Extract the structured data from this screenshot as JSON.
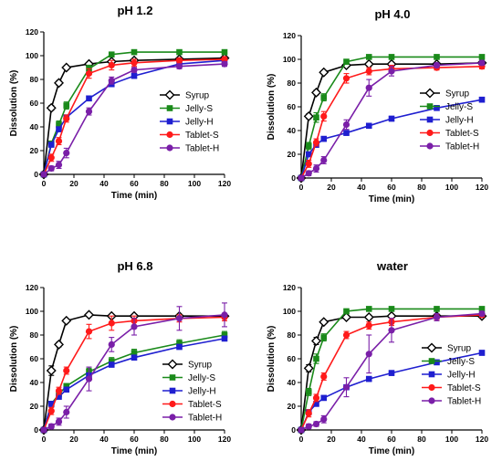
{
  "figure": {
    "legend_placement": "bottom-right",
    "series_styles": [
      {
        "name": "Syrup",
        "color": "#000000",
        "marker": "diamond-open"
      },
      {
        "name": "Jelly-S",
        "color": "#1a8a1a",
        "marker": "square"
      },
      {
        "name": "Jelly-H",
        "color": "#1f1fd0",
        "marker": "square"
      },
      {
        "name": "Tablet-S",
        "color": "#ff1a1a",
        "marker": "circle"
      },
      {
        "name": "Tablet-H",
        "color": "#7a1fa8",
        "marker": "circle"
      }
    ]
  },
  "chart_data": [
    {
      "type": "line",
      "title": "pH 1.2",
      "xlabel": "Time (min)",
      "ylabel": "Dissolution (%)",
      "xlim": [
        0,
        120
      ],
      "ylim": [
        0,
        120
      ],
      "xticks": [
        0,
        20,
        40,
        60,
        80,
        100,
        120
      ],
      "yticks": [
        0,
        20,
        40,
        60,
        80,
        100,
        120
      ],
      "x": [
        0,
        5,
        10,
        15,
        30,
        45,
        60,
        90,
        120
      ],
      "series": [
        {
          "name": "Syrup",
          "values": [
            0,
            56,
            77,
            90,
            93,
            95,
            96,
            97,
            98
          ],
          "err": [
            0,
            2,
            2,
            1,
            1,
            1,
            1,
            1,
            1
          ]
        },
        {
          "name": "Jelly-S",
          "values": [
            0,
            26,
            42,
            58,
            89,
            101,
            103,
            103,
            103
          ],
          "err": [
            0,
            2,
            3,
            3,
            3,
            2,
            1,
            1,
            1
          ]
        },
        {
          "name": "Jelly-H",
          "values": [
            0,
            25,
            38,
            48,
            64,
            76,
            83,
            93,
            96
          ],
          "err": [
            0,
            2,
            2,
            2,
            2,
            2,
            2,
            1,
            1
          ]
        },
        {
          "name": "Tablet-S",
          "values": [
            0,
            14,
            28,
            47,
            85,
            92,
            94,
            96,
            97
          ],
          "err": [
            0,
            3,
            3,
            3,
            4,
            4,
            3,
            2,
            2
          ]
        },
        {
          "name": "Tablet-H",
          "values": [
            0,
            5,
            8,
            18,
            53,
            79,
            88,
            91,
            93
          ],
          "err": [
            0,
            2,
            3,
            4,
            3,
            3,
            2,
            2,
            2
          ]
        }
      ]
    },
    {
      "type": "line",
      "title": "pH 4.0",
      "xlabel": "Time (min)",
      "ylabel": "Dissolution (%)",
      "xlim": [
        0,
        120
      ],
      "ylim": [
        0,
        120
      ],
      "xticks": [
        0,
        20,
        40,
        60,
        80,
        100,
        120
      ],
      "yticks": [
        0,
        20,
        40,
        60,
        80,
        100,
        120
      ],
      "x": [
        0,
        5,
        10,
        15,
        30,
        45,
        60,
        90,
        120
      ],
      "series": [
        {
          "name": "Syrup",
          "values": [
            0,
            52,
            72,
            89,
            95,
            96,
            96,
            96,
            97
          ],
          "err": [
            0,
            2,
            2,
            1,
            1,
            1,
            1,
            1,
            1
          ]
        },
        {
          "name": "Jelly-S",
          "values": [
            0,
            27,
            51,
            68,
            98,
            102,
            102,
            102,
            102
          ],
          "err": [
            0,
            3,
            4,
            3,
            2,
            1,
            1,
            1,
            1
          ]
        },
        {
          "name": "Jelly-H",
          "values": [
            0,
            20,
            28,
            33,
            38,
            44,
            50,
            59,
            66
          ],
          "err": [
            0,
            2,
            2,
            2,
            2,
            2,
            2,
            2,
            2
          ]
        },
        {
          "name": "Tablet-S",
          "values": [
            0,
            12,
            30,
            52,
            84,
            90,
            92,
            93,
            94
          ],
          "err": [
            0,
            3,
            3,
            4,
            4,
            3,
            3,
            2,
            2
          ]
        },
        {
          "name": "Tablet-H",
          "values": [
            0,
            4,
            8,
            15,
            45,
            76,
            90,
            95,
            97
          ],
          "err": [
            0,
            2,
            3,
            3,
            4,
            7,
            4,
            2,
            2
          ]
        }
      ]
    },
    {
      "type": "line",
      "title": "pH 6.8",
      "xlabel": "Time (min)",
      "ylabel": "Dissolution (%)",
      "xlim": [
        0,
        120
      ],
      "ylim": [
        0,
        120
      ],
      "xticks": [
        0,
        20,
        40,
        60,
        80,
        100,
        120
      ],
      "yticks": [
        0,
        20,
        40,
        60,
        80,
        100,
        120
      ],
      "x": [
        0,
        5,
        10,
        15,
        30,
        45,
        60,
        90,
        120
      ],
      "series": [
        {
          "name": "Syrup",
          "values": [
            0,
            50,
            72,
            92,
            97,
            96,
            96,
            96,
            96
          ],
          "err": [
            0,
            4,
            2,
            1,
            1,
            1,
            1,
            1,
            1
          ]
        },
        {
          "name": "Jelly-S",
          "values": [
            0,
            22,
            30,
            37,
            49,
            58,
            65,
            73,
            80
          ],
          "err": [
            0,
            2,
            2,
            2,
            3,
            3,
            3,
            3,
            3
          ]
        },
        {
          "name": "Jelly-H",
          "values": [
            0,
            22,
            28,
            34,
            46,
            55,
            61,
            70,
            77
          ],
          "err": [
            0,
            2,
            2,
            2,
            2,
            2,
            2,
            2,
            2
          ]
        },
        {
          "name": "Tablet-S",
          "values": [
            0,
            16,
            33,
            50,
            83,
            90,
            92,
            94,
            95
          ],
          "err": [
            0,
            3,
            3,
            3,
            6,
            6,
            4,
            3,
            3
          ]
        },
        {
          "name": "Tablet-H",
          "values": [
            0,
            3,
            7,
            15,
            43,
            72,
            87,
            94,
            97
          ],
          "err": [
            0,
            2,
            3,
            5,
            10,
            6,
            7,
            10,
            10
          ]
        }
      ]
    },
    {
      "type": "line",
      "title": "water",
      "xlabel": "Time (min)",
      "ylabel": "Dissolution (%)",
      "xlim": [
        0,
        120
      ],
      "ylim": [
        0,
        120
      ],
      "xticks": [
        0,
        20,
        40,
        60,
        80,
        100,
        120
      ],
      "yticks": [
        0,
        20,
        40,
        60,
        80,
        100,
        120
      ],
      "x": [
        0,
        5,
        10,
        15,
        30,
        45,
        60,
        90,
        120
      ],
      "series": [
        {
          "name": "Syrup",
          "values": [
            0,
            52,
            75,
            91,
            95,
            95,
            96,
            96,
            96
          ],
          "err": [
            0,
            3,
            3,
            1,
            1,
            1,
            1,
            1,
            1
          ]
        },
        {
          "name": "Jelly-S",
          "values": [
            0,
            32,
            60,
            78,
            100,
            102,
            102,
            102,
            102
          ],
          "err": [
            0,
            3,
            4,
            3,
            2,
            1,
            1,
            1,
            1
          ]
        },
        {
          "name": "Jelly-H",
          "values": [
            0,
            15,
            22,
            27,
            36,
            43,
            48,
            57,
            65
          ],
          "err": [
            0,
            2,
            2,
            2,
            2,
            2,
            2,
            2,
            2
          ]
        },
        {
          "name": "Tablet-S",
          "values": [
            0,
            14,
            27,
            45,
            80,
            88,
            91,
            95,
            97
          ],
          "err": [
            0,
            3,
            3,
            3,
            3,
            3,
            3,
            2,
            2
          ]
        },
        {
          "name": "Tablet-H",
          "values": [
            0,
            3,
            5,
            9,
            36,
            64,
            84,
            95,
            98
          ],
          "err": [
            0,
            2,
            2,
            3,
            8,
            16,
            10,
            3,
            2
          ]
        }
      ]
    }
  ]
}
